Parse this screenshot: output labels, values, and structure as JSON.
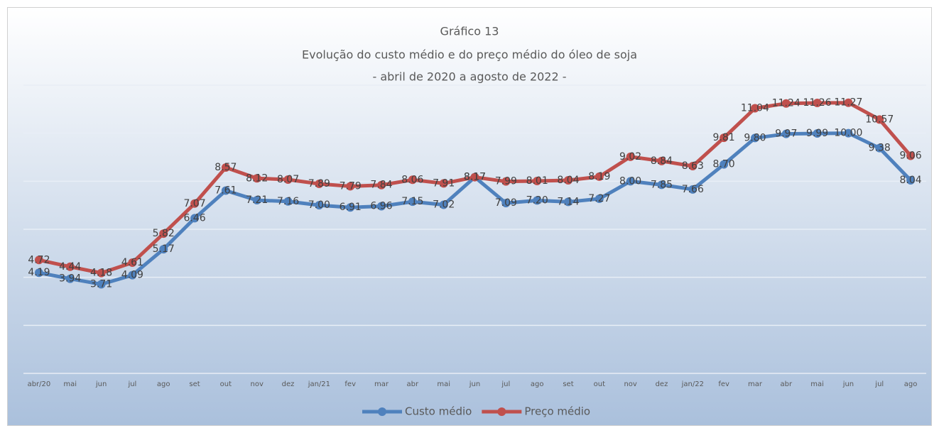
{
  "chart_data": {
    "type": "line",
    "title": "Gráfico 13",
    "subtitle": [
      "Evolução do custo médio e do preço médio do óleo de soja",
      "- abril de 2020 a agosto de 2022 -"
    ],
    "categories": [
      "abr/20",
      "mai",
      "jun",
      "jul",
      "ago",
      "set",
      "out",
      "nov",
      "dez",
      "jan/21",
      "fev",
      "mar",
      "abr",
      "mai",
      "jun",
      "jul",
      "ago",
      "set",
      "out",
      "nov",
      "dez",
      "jan/22",
      "fev",
      "mar",
      "abr",
      "mai",
      "jun",
      "jul",
      "ago"
    ],
    "series": [
      {
        "name": "Custo médio",
        "color": "#4f81bd",
        "values": [
          4.19,
          3.94,
          3.71,
          4.09,
          5.17,
          6.46,
          7.61,
          7.21,
          7.16,
          7.0,
          6.91,
          6.96,
          7.15,
          7.02,
          8.17,
          7.09,
          7.2,
          7.14,
          7.27,
          8.0,
          7.85,
          7.66,
          8.7,
          9.8,
          9.97,
          9.99,
          10.0,
          9.38,
          8.04
        ],
        "value_labels": [
          "4.19",
          "3.94",
          "3.71",
          "4.09",
          "5.17",
          "6.46",
          "7.61",
          "7.21",
          "7.16",
          "7.00",
          "6.91",
          "6.96",
          "7.15",
          "7.02",
          "8.17",
          "7.09",
          "7.20",
          "7.14",
          "7.27",
          "8.00",
          "7.85",
          "7.66",
          "8.70",
          "9.80",
          "9.97",
          "9.99",
          "10.00",
          "9.38",
          "8.04"
        ]
      },
      {
        "name": "Preço médio",
        "color": "#c0504d",
        "values": [
          4.72,
          4.44,
          4.18,
          4.61,
          5.82,
          7.07,
          8.57,
          8.12,
          8.07,
          7.89,
          7.79,
          7.84,
          8.06,
          7.91,
          8.17,
          7.99,
          8.01,
          8.04,
          8.19,
          9.02,
          8.84,
          8.63,
          9.81,
          11.04,
          11.24,
          11.26,
          11.27,
          10.57,
          9.06
        ],
        "value_labels": [
          "4.72",
          "4.44",
          "4.18",
          "4.61",
          "5.82",
          "7.07",
          "8.57",
          "8.12",
          "8.07",
          "7.89",
          "7.79",
          "7.84",
          "8.06",
          "7.91",
          "8.17",
          "7.99",
          "8.01",
          "8.04",
          "8.19",
          "9.02",
          "8.84",
          "8.63",
          "9.81",
          "11.04",
          "11.24",
          "11.26",
          "11.27",
          "10.57",
          "9.06"
        ]
      }
    ],
    "ylim": [
      0,
      12
    ],
    "yticks": [
      0,
      2,
      4,
      6,
      8,
      10,
      12
    ],
    "grid": true,
    "legend": "bottom"
  }
}
